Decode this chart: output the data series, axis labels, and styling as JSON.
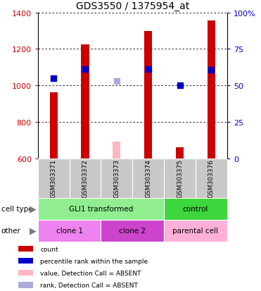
{
  "title": "GDS3550 / 1375954_at",
  "samples": [
    "GSM303371",
    "GSM303372",
    "GSM303373",
    "GSM303374",
    "GSM303375",
    "GSM303376"
  ],
  "count_values": [
    960,
    1225,
    null,
    1300,
    660,
    1355
  ],
  "count_absent": [
    null,
    null,
    690,
    null,
    null,
    null
  ],
  "percentile_values": [
    1040,
    1090,
    null,
    1090,
    1000,
    1085
  ],
  "percentile_absent": [
    null,
    null,
    1025,
    null,
    null,
    null
  ],
  "ylim_left": [
    600,
    1400
  ],
  "ylim_right": [
    0,
    100
  ],
  "right_ticks": [
    0,
    25,
    50,
    75,
    100
  ],
  "right_tick_labels": [
    "0",
    "25",
    "50",
    "75",
    "100%"
  ],
  "left_ticks": [
    600,
    800,
    1000,
    1200,
    1400
  ],
  "cell_type_groups": [
    {
      "label": "GLI1 transformed",
      "start": 0,
      "end": 4,
      "color": "#90EE90"
    },
    {
      "label": "control",
      "start": 4,
      "end": 6,
      "color": "#3DD63D"
    }
  ],
  "other_groups": [
    {
      "label": "clone 1",
      "start": 0,
      "end": 2,
      "color": "#EE82EE"
    },
    {
      "label": "clone 2",
      "start": 2,
      "end": 4,
      "color": "#CC44CC"
    },
    {
      "label": "parental cell",
      "start": 4,
      "end": 6,
      "color": "#FFB0D8"
    }
  ],
  "bar_color": "#CC0000",
  "bar_absent_color": "#FFB6C1",
  "dot_color": "#0000CC",
  "dot_absent_color": "#AAAADD",
  "bar_width": 0.25,
  "dot_size": 35,
  "axis_color_left": "#CC0000",
  "axis_color_right": "#0000CC",
  "bg_color": "#FFFFFF",
  "legend_items": [
    {
      "label": "count",
      "color": "#CC0000"
    },
    {
      "label": "percentile rank within the sample",
      "color": "#0000CC"
    },
    {
      "label": "value, Detection Call = ABSENT",
      "color": "#FFB6C1"
    },
    {
      "label": "rank, Detection Call = ABSENT",
      "color": "#AAAADD"
    }
  ]
}
